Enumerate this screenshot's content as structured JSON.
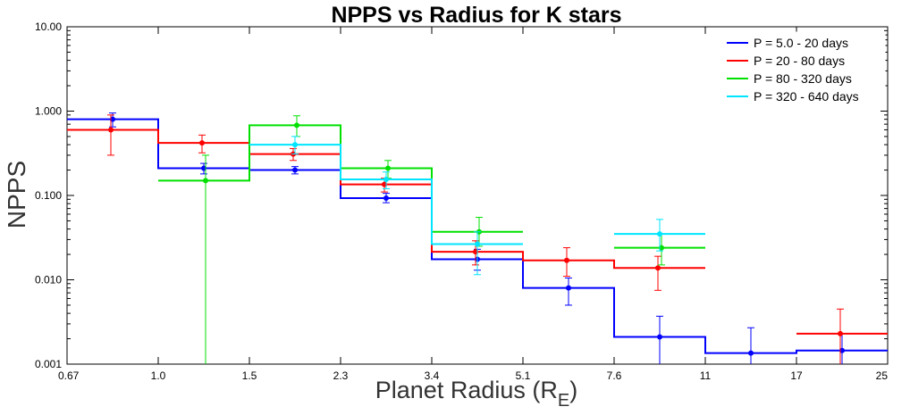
{
  "chart_data": {
    "type": "line",
    "title": "NPPS vs Radius for K stars",
    "xlabel": "Planet Radius (R",
    "xlabel_sub": "E",
    "xlabel_close": ")",
    "ylabel": "NPPS",
    "y_scale": "log",
    "ylim": [
      0.001,
      10
    ],
    "yticks": [
      "0.001",
      "0.010",
      "0.100",
      "1.000",
      "10.00"
    ],
    "xticks": [
      "0.67",
      "1.0",
      "1.5",
      "2.3",
      "3.4",
      "5.1",
      "7.6",
      "11",
      "17",
      "25"
    ],
    "bin_edges_note": "bins are between consecutive x tick labels",
    "legend_position": "top-right",
    "series": [
      {
        "name": "P = 5.0 - 20 days",
        "color": "#0000ff",
        "bins": [
          {
            "bin": 0,
            "value": 0.8,
            "err_lo": 0.65,
            "err_hi": 0.95
          },
          {
            "bin": 1,
            "value": 0.21,
            "err_lo": 0.18,
            "err_hi": 0.24
          },
          {
            "bin": 2,
            "value": 0.2,
            "err_lo": 0.18,
            "err_hi": 0.22
          },
          {
            "bin": 3,
            "value": 0.093,
            "err_lo": 0.082,
            "err_hi": 0.106
          },
          {
            "bin": 4,
            "value": 0.0175,
            "err_lo": 0.013,
            "err_hi": 0.023
          },
          {
            "bin": 5,
            "value": 0.008,
            "err_lo": 0.005,
            "err_hi": 0.0105
          },
          {
            "bin": 6,
            "value": 0.0021,
            "err_lo": 0.001,
            "err_hi": 0.0037
          },
          {
            "bin": 7,
            "value": 0.00135,
            "err_lo": 0.001,
            "err_hi": 0.0027
          },
          {
            "bin": 8,
            "value": 0.00145,
            "err_lo": 0.001,
            "err_hi": 0.0023
          }
        ]
      },
      {
        "name": "P = 20 - 80 days",
        "color": "#ff0000",
        "bins": [
          {
            "bin": 0,
            "value": 0.6,
            "err_lo": 0.3,
            "err_hi": 0.9
          },
          {
            "bin": 1,
            "value": 0.42,
            "err_lo": 0.32,
            "err_hi": 0.52
          },
          {
            "bin": 2,
            "value": 0.31,
            "err_lo": 0.26,
            "err_hi": 0.36
          },
          {
            "bin": 3,
            "value": 0.135,
            "err_lo": 0.11,
            "err_hi": 0.16
          },
          {
            "bin": 4,
            "value": 0.0215,
            "err_lo": 0.015,
            "err_hi": 0.029
          },
          {
            "bin": 5,
            "value": 0.017,
            "err_lo": 0.011,
            "err_hi": 0.024
          },
          {
            "bin": 6,
            "value": 0.0138,
            "err_lo": 0.0075,
            "err_hi": 0.019
          },
          {
            "bin": 8,
            "value": 0.0023,
            "err_lo": 0.001,
            "err_hi": 0.0045
          }
        ]
      },
      {
        "name": "P = 80 - 320 days",
        "color": "#00e000",
        "bins": [
          {
            "bin": 1,
            "value": 0.15,
            "err_lo": 0.001,
            "err_hi": 0.3
          },
          {
            "bin": 2,
            "value": 0.68,
            "err_lo": 0.5,
            "err_hi": 0.88
          },
          {
            "bin": 3,
            "value": 0.21,
            "err_lo": 0.16,
            "err_hi": 0.26
          },
          {
            "bin": 4,
            "value": 0.037,
            "err_lo": 0.025,
            "err_hi": 0.055
          },
          {
            "bin": 6,
            "value": 0.024,
            "err_lo": 0.015,
            "err_hi": 0.035
          }
        ]
      },
      {
        "name": "P = 320 - 640 days",
        "color": "#00e5ff",
        "bins": [
          {
            "bin": 2,
            "value": 0.4,
            "err_lo": 0.31,
            "err_hi": 0.5
          },
          {
            "bin": 3,
            "value": 0.155,
            "err_lo": 0.12,
            "err_hi": 0.19
          },
          {
            "bin": 4,
            "value": 0.0265,
            "err_lo": 0.0115,
            "err_hi": 0.037
          },
          {
            "bin": 6,
            "value": 0.035,
            "err_lo": 0.022,
            "err_hi": 0.052
          }
        ]
      }
    ]
  }
}
